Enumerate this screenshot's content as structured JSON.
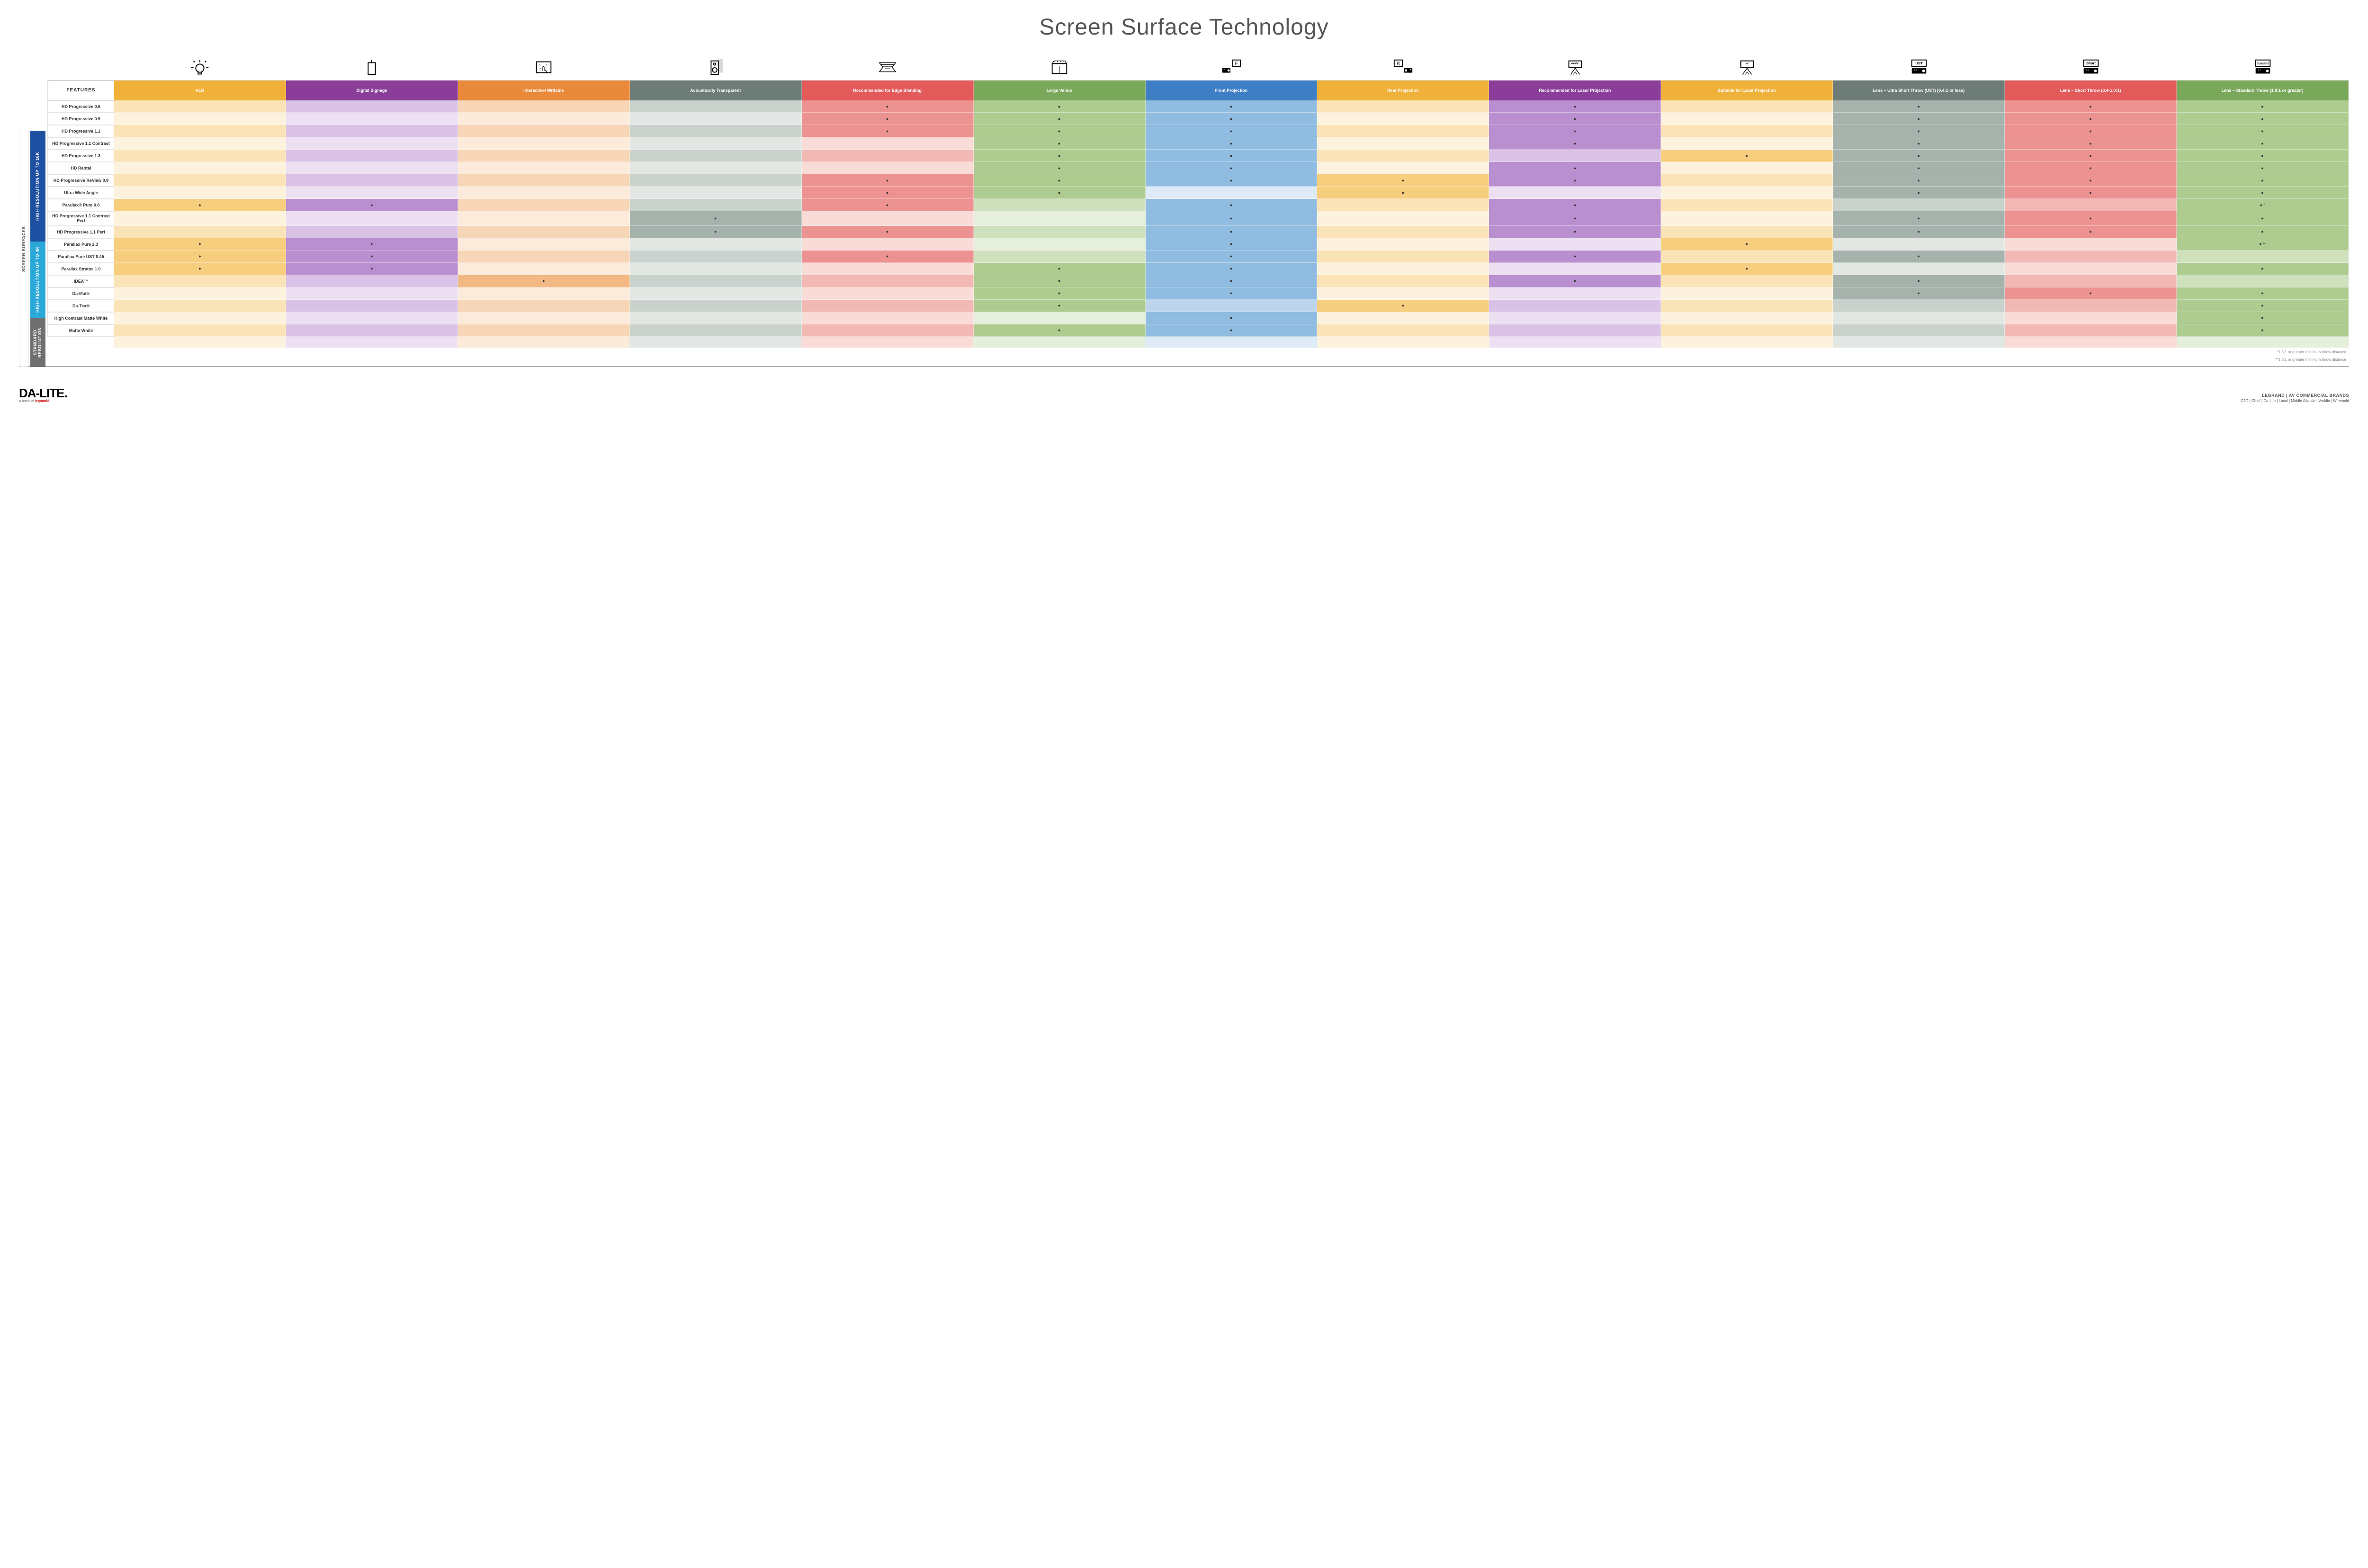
{
  "title": "Screen Surface Technology",
  "colors": {
    "headers": [
      "#f0b13a",
      "#8a3e9a",
      "#e88a3a",
      "#6e7c77",
      "#e25a5a",
      "#7aa85a",
      "#3e7ec4",
      "#f0b13a",
      "#8a3e9a",
      "#f0b13a",
      "#6e7c77",
      "#e25a5a",
      "#7aa85a"
    ],
    "light": [
      "#fae3b7",
      "#d9c2e5",
      "#f7d6b7",
      "#c9d2cd",
      "#f2b8b4",
      "#cfe0bd",
      "#bdd5ec",
      "#fae3b7",
      "#d9c2e5",
      "#fae3b7",
      "#c9d2cd",
      "#f2b8b4",
      "#cfe0bd"
    ],
    "lighter": [
      "#fdf2dd",
      "#ece0f2",
      "#fceadb",
      "#e2e7e4",
      "#f9dbd8",
      "#e6efdc",
      "#deeaf6",
      "#fdf2dd",
      "#ece0f2",
      "#fdf2dd",
      "#e2e7e4",
      "#f9dbd8",
      "#e6efdc"
    ],
    "mid": [
      "#f7cd7e",
      "#b98fd0",
      "#f2b985",
      "#a6b3ac",
      "#ec9290",
      "#aecb90",
      "#8fbce0",
      "#f7cd7e",
      "#b98fd0",
      "#f7cd7e",
      "#a6b3ac",
      "#ec9290",
      "#aecb90"
    ],
    "group16k": "#1e4fa0",
    "group4k": "#2aa8d8",
    "groupStd": "#6f6f6f"
  },
  "sideMain": "SCREEN SURFACES",
  "groups": [
    {
      "label": "HIGH RESOLUTION UP TO 16K",
      "colorKey": "group16k",
      "rows": 9
    },
    {
      "label": "HIGH RESOLUTION UP TO 4K",
      "colorKey": "group4k",
      "rows": 6
    },
    {
      "label": "STANDARD RESOLUTION",
      "colorKey": "groupStd",
      "rows": 4
    }
  ],
  "featureHeader": "FEATURES",
  "columns": [
    "ALR",
    "Digital Signage",
    "Interactive/ Writable",
    "Acoustically Transparent",
    "Recommended for Edge Blending",
    "Large Venue",
    "Front Projection",
    "Rear Projection",
    "Recommended for Laser Projection",
    "Suitable for Laser Projection",
    "Lens – Ultra Short Throw (UST) (0.4:1 or less)",
    "Lens – Short Throw (0.4-1.0:1)",
    "Lens – Standard Throw (1.0:1 or greater)"
  ],
  "rows": [
    {
      "label": "HD Progressive 0.6",
      "dots": [
        0,
        0,
        0,
        0,
        1,
        1,
        1,
        0,
        1,
        0,
        1,
        1,
        1
      ]
    },
    {
      "label": "HD Progressive 0.9",
      "dots": [
        0,
        0,
        0,
        0,
        1,
        1,
        1,
        0,
        1,
        0,
        1,
        1,
        1
      ]
    },
    {
      "label": "HD Progressive 1.1",
      "dots": [
        0,
        0,
        0,
        0,
        1,
        1,
        1,
        0,
        1,
        0,
        1,
        1,
        1
      ]
    },
    {
      "label": "HD Progressive 1.1 Contrast",
      "dots": [
        0,
        0,
        0,
        0,
        0,
        1,
        1,
        0,
        1,
        0,
        1,
        1,
        1
      ]
    },
    {
      "label": "HD Progressive 1.3",
      "dots": [
        0,
        0,
        0,
        0,
        0,
        1,
        1,
        0,
        0,
        1,
        1,
        1,
        1
      ]
    },
    {
      "label": "HD Rental",
      "dots": [
        0,
        0,
        0,
        0,
        0,
        1,
        1,
        0,
        1,
        0,
        1,
        1,
        1
      ]
    },
    {
      "label": "HD Progressive ReView 0.9",
      "dots": [
        0,
        0,
        0,
        0,
        1,
        1,
        1,
        1,
        1,
        0,
        1,
        1,
        1
      ]
    },
    {
      "label": "Ultra Wide Angle",
      "dots": [
        0,
        0,
        0,
        0,
        1,
        1,
        0,
        1,
        0,
        0,
        1,
        1,
        1
      ]
    },
    {
      "label": "Parallax® Pure 0.8",
      "dots": [
        1,
        1,
        0,
        0,
        1,
        0,
        1,
        0,
        1,
        0,
        0,
        0,
        1
      ],
      "note": "*"
    },
    {
      "label": "HD Progressive 1.1 Contrast Perf",
      "dots": [
        0,
        0,
        0,
        1,
        0,
        0,
        1,
        0,
        1,
        0,
        1,
        1,
        1
      ]
    },
    {
      "label": "HD Progressive 1.1 Perf",
      "dots": [
        0,
        0,
        0,
        1,
        1,
        0,
        1,
        0,
        1,
        0,
        1,
        1,
        1
      ]
    },
    {
      "label": "Parallax Pure 2.3",
      "dots": [
        1,
        1,
        0,
        0,
        0,
        0,
        1,
        0,
        0,
        1,
        0,
        0,
        1
      ],
      "note": "**"
    },
    {
      "label": "Parallax Pure UST 0.45",
      "dots": [
        1,
        1,
        0,
        0,
        1,
        0,
        1,
        0,
        1,
        0,
        1,
        0,
        0
      ]
    },
    {
      "label": "Parallax Stratos 1.0",
      "dots": [
        1,
        1,
        0,
        0,
        0,
        1,
        1,
        0,
        0,
        1,
        0,
        0,
        1
      ]
    },
    {
      "label": "IDEA™",
      "dots": [
        0,
        0,
        1,
        0,
        0,
        1,
        1,
        0,
        1,
        0,
        1,
        0,
        0
      ]
    },
    {
      "label": "Da-Mat®",
      "dots": [
        0,
        0,
        0,
        0,
        0,
        1,
        1,
        0,
        0,
        0,
        1,
        1,
        1
      ]
    },
    {
      "label": "Da-Tex®",
      "dots": [
        0,
        0,
        0,
        0,
        0,
        1,
        0,
        1,
        0,
        0,
        0,
        0,
        1
      ]
    },
    {
      "label": "High Contrast Matte White",
      "dots": [
        0,
        0,
        0,
        0,
        0,
        0,
        1,
        0,
        0,
        0,
        0,
        0,
        1
      ]
    },
    {
      "label": "Matte White",
      "dots": [
        0,
        0,
        0,
        0,
        0,
        1,
        1,
        0,
        0,
        0,
        0,
        0,
        1
      ]
    }
  ],
  "footnotes": [
    "*1.5:1 or greater minimum throw distance",
    "**1.8:1 or greater minimum throw distance"
  ],
  "footer": {
    "brand": "DA-LITE.",
    "brandSub": "A brand of",
    "brandSubLogo": "legrand®",
    "rightLine1": "LEGRAND | AV COMMERCIAL BRANDS",
    "rightLine2": "C2G  |  Chief  |  Da-Lite  |  Luxul  |  Middle Atlantic  |  Vaddio  |  Wiremold"
  },
  "icons": [
    "bulb",
    "signage",
    "touch",
    "speaker",
    "blend",
    "venue",
    "front",
    "rear",
    "laser-rec",
    "laser-suit",
    "ust",
    "short",
    "standard"
  ]
}
